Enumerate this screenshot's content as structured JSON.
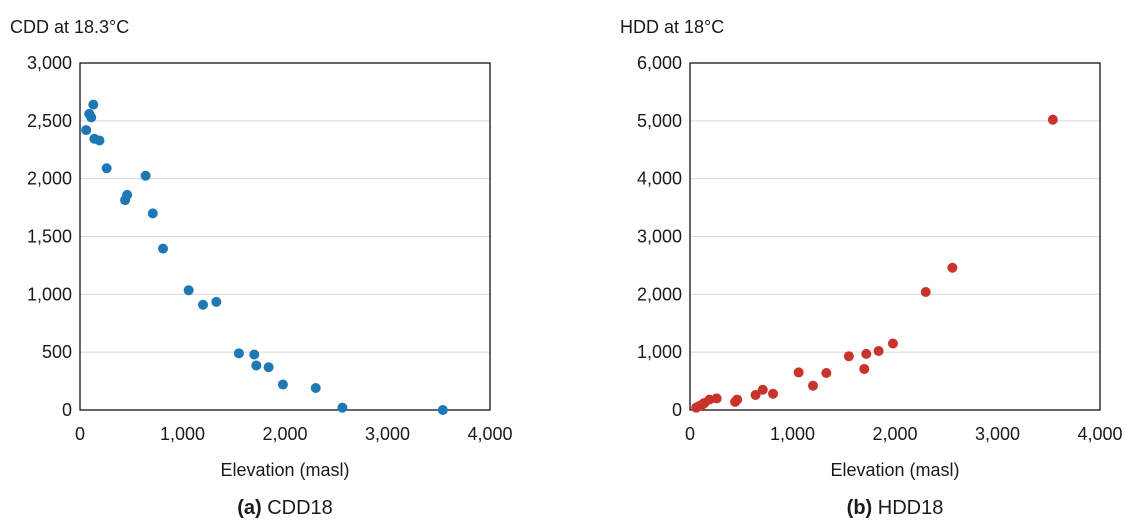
{
  "chart_data": [
    {
      "type": "scatter",
      "ylabel": "CDD at 18.3°C",
      "xlabel": "Elevation (masl)",
      "caption_label": "(a)",
      "caption_text": " CDD18",
      "xlim": [
        0,
        4000
      ],
      "ylim": [
        0,
        3000
      ],
      "x_ticks": [
        0,
        1000,
        2000,
        3000,
        4000
      ],
      "x_tick_labels": [
        "0",
        "1,000",
        "2,000",
        "3,000",
        "4,000"
      ],
      "y_ticks": [
        0,
        500,
        1000,
        1500,
        2000,
        2500,
        3000
      ],
      "y_tick_labels": [
        "0",
        "500",
        "1,000",
        "1,500",
        "2,000",
        "2,500",
        "3,000"
      ],
      "grid": true,
      "color": "#1f77b4",
      "points": [
        {
          "x": 60,
          "y": 2420
        },
        {
          "x": 90,
          "y": 2560
        },
        {
          "x": 110,
          "y": 2530
        },
        {
          "x": 130,
          "y": 2640
        },
        {
          "x": 140,
          "y": 2345
        },
        {
          "x": 190,
          "y": 2330
        },
        {
          "x": 260,
          "y": 2090
        },
        {
          "x": 440,
          "y": 1815
        },
        {
          "x": 460,
          "y": 1860
        },
        {
          "x": 640,
          "y": 2025
        },
        {
          "x": 710,
          "y": 1700
        },
        {
          "x": 810,
          "y": 1395
        },
        {
          "x": 1060,
          "y": 1035
        },
        {
          "x": 1200,
          "y": 910
        },
        {
          "x": 1330,
          "y": 935
        },
        {
          "x": 1550,
          "y": 490
        },
        {
          "x": 1700,
          "y": 480
        },
        {
          "x": 1720,
          "y": 385
        },
        {
          "x": 1840,
          "y": 370
        },
        {
          "x": 1980,
          "y": 220
        },
        {
          "x": 2300,
          "y": 190
        },
        {
          "x": 2560,
          "y": 20
        },
        {
          "x": 3540,
          "y": 0
        }
      ]
    },
    {
      "type": "scatter",
      "ylabel": "HDD at 18°C",
      "xlabel": "Elevation (masl)",
      "caption_label": "(b)",
      "caption_text": " HDD18",
      "xlim": [
        0,
        4000
      ],
      "ylim": [
        0,
        6000
      ],
      "x_ticks": [
        0,
        1000,
        2000,
        3000,
        4000
      ],
      "x_tick_labels": [
        "0",
        "1,000",
        "2,000",
        "3,000",
        "4,000"
      ],
      "y_ticks": [
        0,
        1000,
        2000,
        3000,
        4000,
        5000,
        6000
      ],
      "y_tick_labels": [
        "0",
        "1,000",
        "2,000",
        "3,000",
        "4,000",
        "5,000",
        "6,000"
      ],
      "grid": true,
      "color": "#c8332b",
      "points": [
        {
          "x": 60,
          "y": 40
        },
        {
          "x": 90,
          "y": 70
        },
        {
          "x": 110,
          "y": 80
        },
        {
          "x": 130,
          "y": 110
        },
        {
          "x": 140,
          "y": 120
        },
        {
          "x": 190,
          "y": 180
        },
        {
          "x": 260,
          "y": 200
        },
        {
          "x": 440,
          "y": 140
        },
        {
          "x": 460,
          "y": 180
        },
        {
          "x": 640,
          "y": 260
        },
        {
          "x": 710,
          "y": 350
        },
        {
          "x": 810,
          "y": 280
        },
        {
          "x": 1060,
          "y": 650
        },
        {
          "x": 1200,
          "y": 420
        },
        {
          "x": 1330,
          "y": 640
        },
        {
          "x": 1550,
          "y": 930
        },
        {
          "x": 1700,
          "y": 710
        },
        {
          "x": 1720,
          "y": 970
        },
        {
          "x": 1840,
          "y": 1020
        },
        {
          "x": 1980,
          "y": 1150
        },
        {
          "x": 2300,
          "y": 2040
        },
        {
          "x": 2560,
          "y": 2460
        },
        {
          "x": 3540,
          "y": 5020
        }
      ]
    }
  ]
}
